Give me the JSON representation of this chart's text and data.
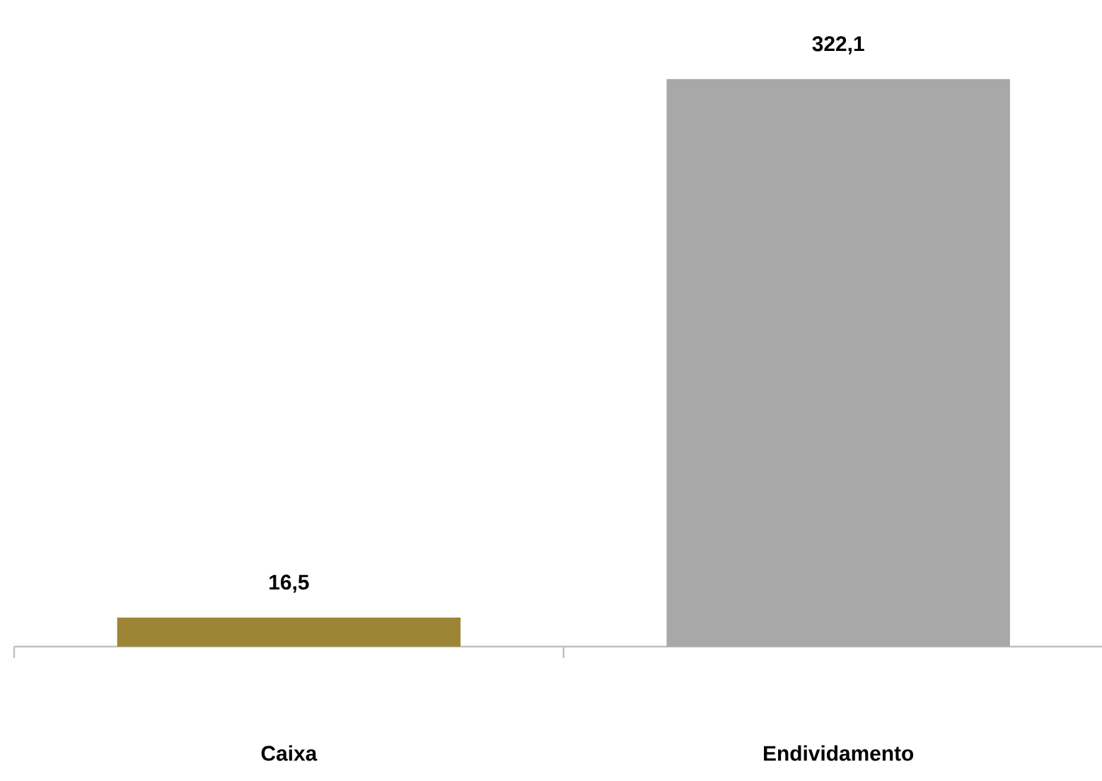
{
  "chart_data": {
    "type": "bar",
    "categories": [
      "Caixa",
      "Endividamento"
    ],
    "values": [
      16.5,
      322.1
    ],
    "colors": [
      "#9c8535",
      "#a8a8a8"
    ],
    "value_labels": [
      "16,5",
      "322,1"
    ],
    "grid": false,
    "tick_labels": "x"
  }
}
